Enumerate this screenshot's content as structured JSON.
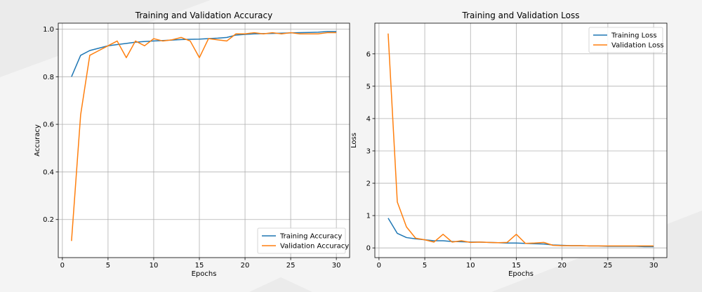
{
  "chart_data": [
    {
      "type": "line",
      "title": "Training and Validation Accuracy",
      "xlabel": "Epochs",
      "ylabel": "Accuracy",
      "xlim": [
        -0.45,
        31.45
      ],
      "ylim": [
        0.04,
        1.025
      ],
      "xticks": [
        0,
        5,
        10,
        15,
        20,
        25,
        30
      ],
      "yticks": [
        0.2,
        0.4,
        0.6,
        0.8,
        1.0
      ],
      "ytick_labels": [
        "0.2",
        "0.4",
        "0.6",
        "0.8",
        "1.0"
      ],
      "grid": true,
      "legend_loc": "lower-right",
      "x": [
        1,
        2,
        3,
        4,
        5,
        6,
        7,
        8,
        9,
        10,
        11,
        12,
        13,
        14,
        15,
        16,
        17,
        18,
        19,
        20,
        21,
        22,
        23,
        24,
        25,
        26,
        27,
        28,
        29,
        30
      ],
      "series": [
        {
          "name": "Training Accuracy",
          "color": "#1f77b4",
          "values": [
            0.8,
            0.89,
            0.91,
            0.92,
            0.93,
            0.935,
            0.94,
            0.945,
            0.948,
            0.95,
            0.952,
            0.954,
            0.956,
            0.957,
            0.958,
            0.96,
            0.962,
            0.965,
            0.975,
            0.978,
            0.98,
            0.981,
            0.982,
            0.983,
            0.984,
            0.985,
            0.986,
            0.987,
            0.99,
            0.99
          ]
        },
        {
          "name": "Validation Accuracy",
          "color": "#ff7f0e",
          "values": [
            0.11,
            0.64,
            0.89,
            0.91,
            0.93,
            0.95,
            0.88,
            0.95,
            0.93,
            0.96,
            0.95,
            0.955,
            0.965,
            0.95,
            0.88,
            0.96,
            0.955,
            0.95,
            0.98,
            0.98,
            0.985,
            0.98,
            0.985,
            0.98,
            0.985,
            0.98,
            0.98,
            0.98,
            0.985,
            0.985
          ]
        }
      ]
    },
    {
      "type": "line",
      "title": "Training and Validation Loss",
      "xlabel": "Epochs",
      "ylabel": "Loss",
      "xlim": [
        -0.45,
        31.45
      ],
      "ylim": [
        -0.3,
        6.95
      ],
      "xticks": [
        0,
        5,
        10,
        15,
        20,
        25,
        30
      ],
      "yticks": [
        0,
        1,
        2,
        3,
        4,
        5,
        6
      ],
      "ytick_labels": [
        "0",
        "1",
        "2",
        "3",
        "4",
        "5",
        "6"
      ],
      "grid": true,
      "legend_loc": "upper-right",
      "x": [
        1,
        2,
        3,
        4,
        5,
        6,
        7,
        8,
        9,
        10,
        11,
        12,
        13,
        14,
        15,
        16,
        17,
        18,
        19,
        20,
        21,
        22,
        23,
        24,
        25,
        26,
        27,
        28,
        29,
        30
      ],
      "series": [
        {
          "name": "Training Loss",
          "color": "#1f77b4",
          "values": [
            0.92,
            0.45,
            0.32,
            0.28,
            0.25,
            0.22,
            0.22,
            0.2,
            0.19,
            0.18,
            0.18,
            0.17,
            0.16,
            0.15,
            0.15,
            0.14,
            0.13,
            0.12,
            0.09,
            0.08,
            0.07,
            0.07,
            0.06,
            0.06,
            0.05,
            0.05,
            0.05,
            0.05,
            0.04,
            0.04
          ]
        },
        {
          "name": "Validation Loss",
          "color": "#ff7f0e",
          "values": [
            6.63,
            1.42,
            0.65,
            0.3,
            0.25,
            0.18,
            0.42,
            0.18,
            0.22,
            0.17,
            0.18,
            0.17,
            0.16,
            0.17,
            0.42,
            0.14,
            0.15,
            0.17,
            0.08,
            0.07,
            0.07,
            0.07,
            0.06,
            0.06,
            0.06,
            0.06,
            0.06,
            0.06,
            0.06,
            0.06
          ]
        }
      ]
    }
  ]
}
